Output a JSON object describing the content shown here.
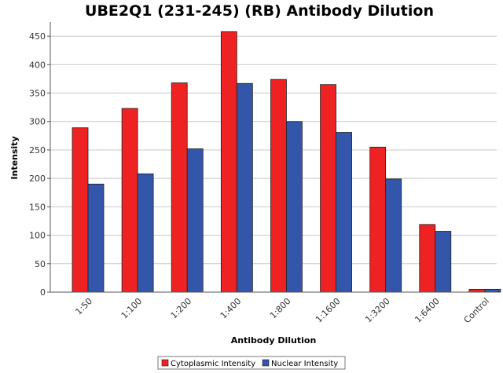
{
  "chart_data": {
    "type": "bar",
    "title": "UBE2Q1 (231-245) (RB) Antibody Dilution",
    "xlabel": "Antibody Dilution",
    "ylabel": "Intensity",
    "categories": [
      "1:50",
      "1:100",
      "1:200",
      "1:400",
      "1:800",
      "1:1600",
      "1:3200",
      "1:6400",
      "Control"
    ],
    "series": [
      {
        "name": "Cytoplasmic Intensity",
        "color": "#ee2222",
        "values": [
          289,
          323,
          368,
          458,
          374,
          365,
          255,
          119,
          5
        ]
      },
      {
        "name": "Nuclear Intensity",
        "color": "#3355aa",
        "values": [
          190,
          208,
          252,
          367,
          300,
          281,
          199,
          107,
          5
        ]
      }
    ],
    "ylim": [
      0,
      475
    ],
    "yticks": [
      0,
      50,
      100,
      150,
      200,
      250,
      300,
      350,
      400,
      450
    ],
    "grid": true,
    "legend_position": "bottom"
  }
}
